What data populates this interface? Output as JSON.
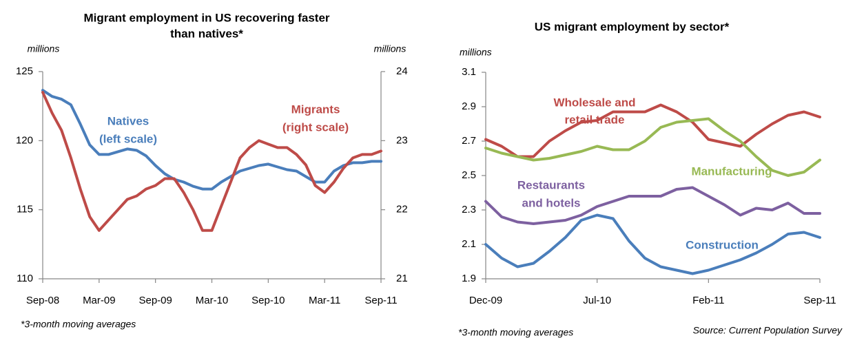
{
  "chart_data": [
    {
      "type": "line",
      "title": [
        "Migrant employment in US recovering faster",
        "than natives*"
      ],
      "ylabel": "millions",
      "y2label": "millions",
      "note": "*3-month moving averages",
      "categories": [
        "Sep-08",
        null,
        null,
        null,
        null,
        null,
        "Mar-09",
        null,
        null,
        null,
        null,
        null,
        "Sep-09",
        null,
        null,
        null,
        null,
        null,
        "Mar-10",
        null,
        null,
        null,
        null,
        null,
        "Sep-10",
        null,
        null,
        null,
        null,
        null,
        "Mar-11",
        null,
        null,
        null,
        null,
        null,
        "Sep-11"
      ],
      "ylim": [
        110,
        125
      ],
      "yticks": [
        110,
        115,
        120,
        125
      ],
      "y2lim": [
        21,
        24
      ],
      "y2ticks": [
        21,
        22,
        23,
        24
      ],
      "grid": false,
      "series": [
        {
          "name": [
            "Natives",
            "(left scale)"
          ],
          "color": "#4a7ebb",
          "values": [
            123.65,
            123.2,
            123.0,
            122.6,
            121.2,
            119.7,
            119.0,
            119.0,
            119.2,
            119.4,
            119.3,
            118.9,
            118.2,
            117.6,
            117.2,
            117.0,
            116.7,
            116.5,
            116.5,
            117.0,
            117.4,
            117.8,
            118.0,
            118.2,
            118.3,
            118.1,
            117.9,
            117.8,
            117.4,
            117.0,
            117.0,
            117.8,
            118.2,
            118.4,
            118.4,
            118.5,
            118.5
          ]
        },
        {
          "name": [
            "Migrants",
            "(right scale)"
          ],
          "color": "#be4b48",
          "axis": "y2",
          "values": [
            23.7,
            23.4,
            23.15,
            22.75,
            22.3,
            21.9,
            21.7,
            21.85,
            22.0,
            22.15,
            22.2,
            22.3,
            22.35,
            22.45,
            22.45,
            22.25,
            22.0,
            21.7,
            21.7,
            22.05,
            22.4,
            22.75,
            22.9,
            23.0,
            22.95,
            22.9,
            22.9,
            22.8,
            22.65,
            22.35,
            22.25,
            22.4,
            22.6,
            22.75,
            22.8,
            22.8,
            22.85
          ]
        }
      ]
    },
    {
      "type": "line",
      "title": [
        "US migrant employment by sector*"
      ],
      "ylabel": "millions",
      "note": "*3-month moving averages",
      "source": "Source: Current Population Survey",
      "categories": [
        "Dec-09",
        null,
        null,
        null,
        null,
        null,
        null,
        "Jul-10",
        null,
        null,
        null,
        null,
        null,
        null,
        "Feb-11",
        null,
        null,
        null,
        null,
        null,
        null,
        "Sep-11"
      ],
      "ylim": [
        1.9,
        3.1
      ],
      "yticks": [
        1.9,
        2.1,
        2.3,
        2.5,
        2.7,
        2.9,
        3.1
      ],
      "grid": false,
      "series": [
        {
          "name": [
            "Wholesale and",
            "retail trade"
          ],
          "color": "#be4b48",
          "values": [
            2.71,
            2.67,
            2.61,
            2.61,
            2.7,
            2.76,
            2.81,
            2.82,
            2.87,
            2.87,
            2.87,
            2.91,
            2.87,
            2.81,
            2.71,
            2.69,
            2.67,
            2.74,
            2.8,
            2.85,
            2.87,
            2.84
          ]
        },
        {
          "name": [
            "Manufacturing"
          ],
          "color": "#98b954",
          "values": [
            2.66,
            2.63,
            2.61,
            2.59,
            2.6,
            2.62,
            2.64,
            2.67,
            2.65,
            2.65,
            2.7,
            2.78,
            2.81,
            2.82,
            2.83,
            2.76,
            2.7,
            2.61,
            2.53,
            2.5,
            2.52,
            2.59
          ]
        },
        {
          "name": [
            "Restaurants",
            "and hotels"
          ],
          "color": "#7d60a0",
          "values": [
            2.35,
            2.26,
            2.23,
            2.22,
            2.23,
            2.24,
            2.27,
            2.32,
            2.35,
            2.38,
            2.38,
            2.38,
            2.42,
            2.43,
            2.38,
            2.33,
            2.27,
            2.31,
            2.3,
            2.34,
            2.28,
            2.28
          ]
        },
        {
          "name": [
            "Construction"
          ],
          "color": "#4a7ebb",
          "values": [
            2.1,
            2.02,
            1.97,
            1.99,
            2.06,
            2.14,
            2.24,
            2.27,
            2.25,
            2.12,
            2.02,
            1.97,
            1.95,
            1.93,
            1.95,
            1.98,
            2.01,
            2.05,
            2.1,
            2.16,
            2.17,
            2.14
          ]
        }
      ]
    }
  ]
}
